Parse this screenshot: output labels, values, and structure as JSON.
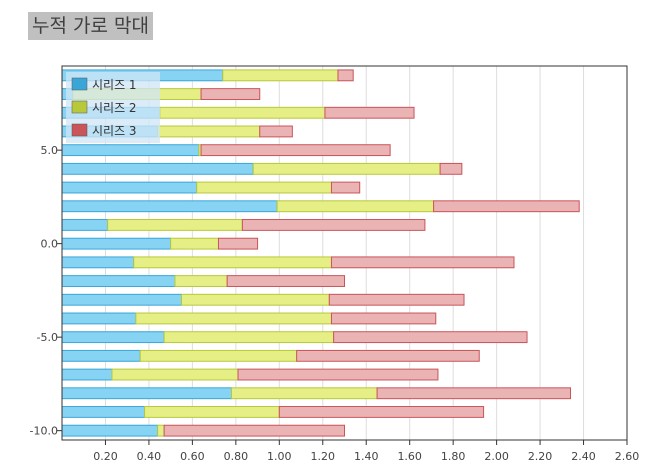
{
  "title": "누적 가로 막대",
  "chart_data": {
    "type": "bar",
    "orientation": "horizontal",
    "stacked": true,
    "title": "누적 가로 막대",
    "xlabel": "",
    "ylabel": "",
    "xlim": [
      0,
      2.6
    ],
    "ylim": [
      -10.5,
      9.5
    ],
    "x_ticks": [
      "0.20",
      "0.40",
      "0.60",
      "0.80",
      "1.00",
      "1.20",
      "1.40",
      "1.60",
      "1.80",
      "2.00",
      "2.20",
      "2.40",
      "2.60"
    ],
    "y_ticks": [
      "5.0",
      "0.0",
      "-5.0",
      "-10.0"
    ],
    "categories": [
      9,
      8,
      7,
      6,
      5,
      4,
      3,
      2,
      1,
      0,
      -1,
      -2,
      -3,
      -4,
      -5,
      -6,
      -7,
      -8,
      -9,
      -10
    ],
    "grid": "vertical",
    "legend_position": "top-left",
    "series": [
      {
        "name": "시리즈 1",
        "color": "#87d3f3",
        "stroke": "#3aa6d8",
        "values": [
          0.74,
          0.05,
          0.45,
          0.44,
          0.63,
          0.88,
          0.62,
          0.99,
          0.21,
          0.5,
          0.33,
          0.52,
          0.55,
          0.34,
          0.47,
          0.36,
          0.23,
          0.78,
          0.38,
          0.44
        ]
      },
      {
        "name": "시리즈 2",
        "color": "#e6ef86",
        "stroke": "#b7c93a",
        "values": [
          0.53,
          0.59,
          0.76,
          0.47,
          0.01,
          0.86,
          0.62,
          0.72,
          0.62,
          0.22,
          0.91,
          0.24,
          0.68,
          0.9,
          0.78,
          0.72,
          0.58,
          0.67,
          0.62,
          0.03
        ]
      },
      {
        "name": "시리즈 3",
        "color": "#ebb4b4",
        "stroke": "#c9545a",
        "values": [
          0.07,
          0.27,
          0.41,
          0.15,
          0.87,
          0.1,
          0.13,
          0.67,
          0.84,
          0.18,
          0.84,
          0.54,
          0.62,
          0.48,
          0.89,
          0.84,
          0.92,
          0.89,
          0.94,
          0.83
        ]
      }
    ]
  }
}
